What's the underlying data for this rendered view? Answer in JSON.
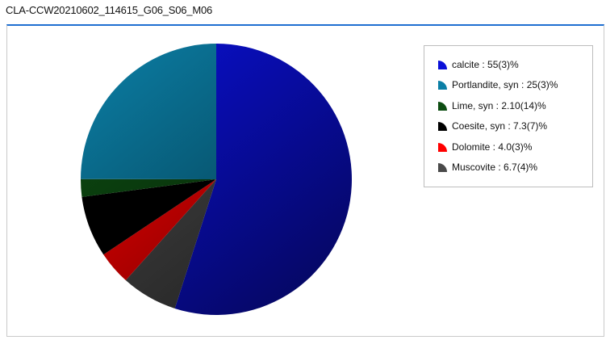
{
  "window": {
    "title": "CLA-CCW20210602_114615_G06_S06_M06"
  },
  "chart_data": {
    "type": "pie",
    "title": "",
    "series": [
      {
        "name": "calcite",
        "value": 55,
        "label": "calcite : 55(3)%",
        "color": "#0a10d8"
      },
      {
        "name": "Muscovite",
        "value": 6.7,
        "label": "Muscovite : 6.7(4)%",
        "color": "#4a4a4a"
      },
      {
        "name": "Dolomite",
        "value": 4.0,
        "label": "Dolomite : 4.0(3)%",
        "color": "#ff0000"
      },
      {
        "name": "Coesite, syn",
        "value": 7.3,
        "label": "Coesite, syn : 7.3(7)%",
        "color": "#000000"
      },
      {
        "name": "Lime, syn",
        "value": 2.1,
        "label": "Lime, syn : 2.10(14)%",
        "color": "#0d4d12"
      },
      {
        "name": "Portlandite, syn",
        "value": 25,
        "label": "Portlandite, syn : 25(3)%",
        "color": "#0b7fa6"
      }
    ],
    "legend_order": [
      "calcite : 55(3)%",
      "Portlandite, syn : 25(3)%",
      "Lime, syn : 2.10(14)%",
      "Coesite, syn : 7.3(7)%",
      "Dolomite : 4.0(3)%",
      "Muscovite : 6.7(4)%"
    ],
    "legend_colors": [
      "#0a10d8",
      "#0b7fa6",
      "#0d4d12",
      "#000000",
      "#ff0000",
      "#4a4a4a"
    ],
    "legend_position": "top-right",
    "direction": "clockwise-from-top"
  }
}
